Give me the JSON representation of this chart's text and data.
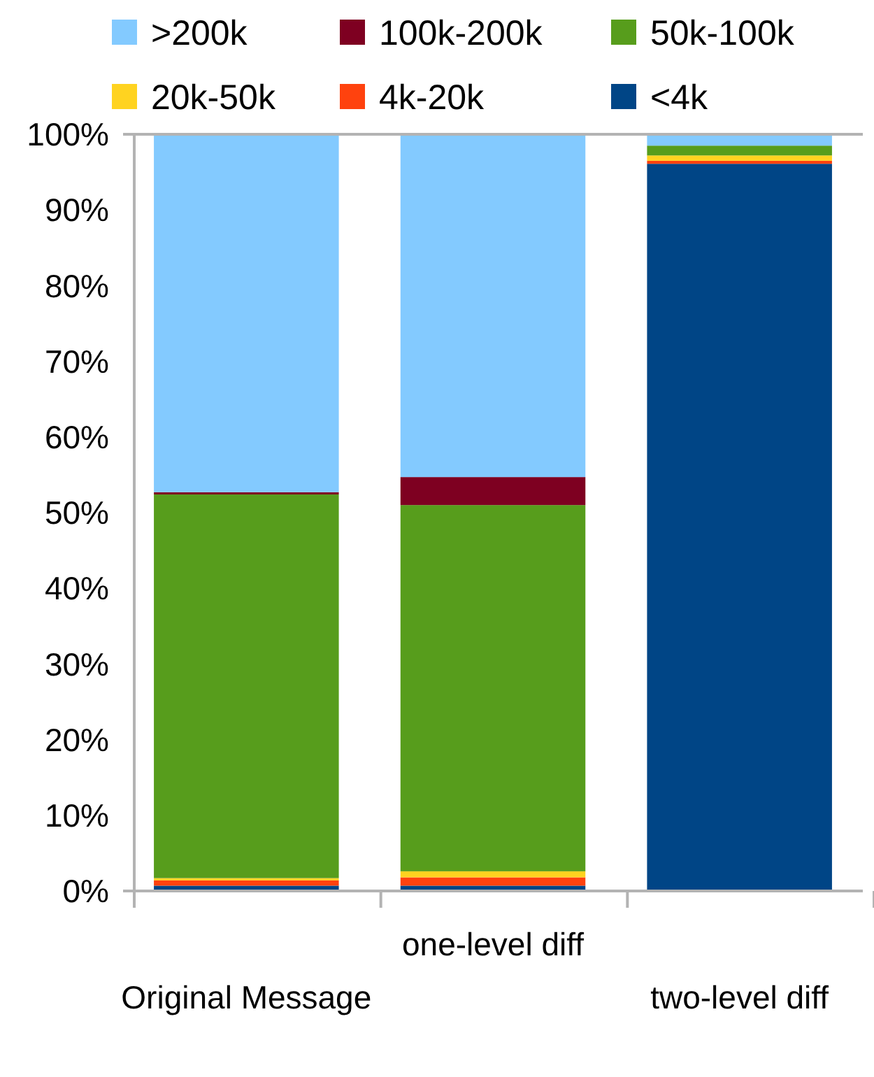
{
  "chart_data": {
    "type": "bar",
    "stacked": true,
    "categories": [
      "Original Message",
      "one-level diff",
      "two-level diff"
    ],
    "series": [
      {
        "name": "<4k",
        "color": "#004586",
        "values": [
          0.7,
          0.7,
          96.1
        ]
      },
      {
        "name": "4k-20k",
        "color": "#ff420e",
        "values": [
          0.7,
          1.1,
          0.4
        ]
      },
      {
        "name": "20k-50k",
        "color": "#ffd320",
        "values": [
          0.3,
          0.8,
          0.7
        ]
      },
      {
        "name": "50k-100k",
        "color": "#579d1c",
        "values": [
          50.7,
          48.4,
          1.3
        ]
      },
      {
        "name": "100k-200k",
        "color": "#7e0021",
        "values": [
          0.3,
          3.7,
          0
        ]
      },
      {
        "name": ">200k",
        "color": "#83caff",
        "values": [
          47.3,
          45.3,
          1.5
        ]
      }
    ],
    "ylim": [
      0,
      100
    ],
    "yticks": [
      {
        "value": 0,
        "label": "0%"
      },
      {
        "value": 10,
        "label": "10%"
      },
      {
        "value": 20,
        "label": "20%"
      },
      {
        "value": 30,
        "label": "30%"
      },
      {
        "value": 40,
        "label": "40%"
      },
      {
        "value": 50,
        "label": "50%"
      },
      {
        "value": 60,
        "label": "60%"
      },
      {
        "value": 70,
        "label": "70%"
      },
      {
        "value": 80,
        "label": "80%"
      },
      {
        "value": 90,
        "label": "90%"
      },
      {
        "value": 100,
        "label": "100%"
      }
    ],
    "grid": false,
    "legend": "top"
  }
}
